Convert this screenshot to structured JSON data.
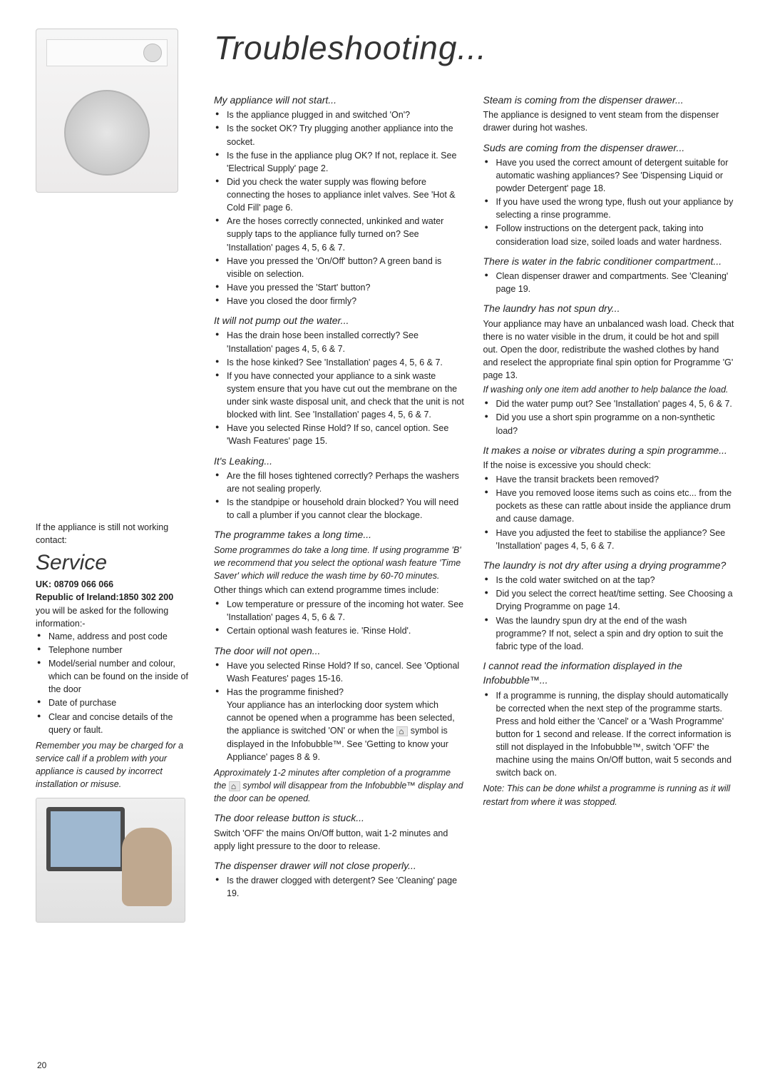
{
  "pageNumber": "20",
  "title": "Troubleshooting...",
  "left": {
    "serviceIntro": "If the appliance is still not working contact:",
    "serviceHead": "Service",
    "uk": "UK: 08709 066 066",
    "roi": "Republic of Ireland:1850 302 200",
    "infoLead": "you will be asked for the following information:-",
    "info": [
      "Name, address and post code",
      "Telephone number",
      "Model/serial number and colour, which can be found on the inside of the door",
      "Date of purchase",
      "Clear and concise details of the query or fault."
    ],
    "remember": "Remember you may be charged for a service call if a problem with your appliance is caused by incorrect installation or misuse."
  },
  "colA": {
    "s1": {
      "head": "My appliance will not start...",
      "items": [
        "Is the appliance plugged in and switched 'On'?",
        "Is the socket OK? Try plugging another appliance into the socket.",
        "Is the fuse in the appliance plug OK? If not, replace it. See 'Electrical Supply' page 2.",
        "Did you check the water supply was flowing before connecting the hoses to appliance inlet valves. See 'Hot & Cold Fill' page 6.",
        "Are the hoses correctly connected, unkinked and water supply taps to the appliance fully turned on? See 'Installation' pages 4, 5, 6 & 7.",
        "Have you pressed the 'On/Off' button? A green band is visible on selection.",
        "Have you pressed the 'Start' button?",
        "Have you closed the door firmly?"
      ]
    },
    "s2": {
      "head": "It will not pump out the water...",
      "items": [
        "Has the drain hose been installed correctly? See 'Installation' pages 4, 5, 6 & 7.",
        "Is the hose kinked? See 'Installation' pages 4, 5, 6 & 7.",
        "If you have connected your appliance to a sink waste system ensure that you have cut out the membrane on the under sink waste disposal unit, and check that the unit is not blocked with lint. See 'Installation' pages 4, 5, 6 & 7.",
        "Have you selected Rinse Hold? If so, cancel option. See 'Wash Features' page 15."
      ]
    },
    "s3": {
      "head": "It's Leaking...",
      "items": [
        "Are the fill hoses tightened correctly? Perhaps the washers are not sealing properly.",
        "Is the standpipe or household drain blocked? You will need to call a plumber if you cannot clear the blockage."
      ]
    },
    "s4": {
      "head": "The programme takes a long time...",
      "lead": "Some programmes do take a long time. If using programme 'B' we recommend that you select the optional wash feature 'Time Saver' which will reduce the wash time by 60-70 minutes.",
      "other": "Other things which can extend programme times include:",
      "items": [
        "Low temperature or pressure of the incoming hot water. See 'Installation' pages 4, 5, 6 & 7.",
        "Certain optional wash features ie. 'Rinse Hold'."
      ]
    },
    "s5": {
      "head": "The door will not open...",
      "itemsA": [
        "Have you selected Rinse Hold? If so, cancel. See 'Optional Wash Features' pages 15-16."
      ],
      "itemB_lead": "Has the programme finished?",
      "itemB_body1": "Your appliance has an interlocking door system which cannot be opened when a programme has been selected, the appliance is switched 'ON' or when the ",
      "itemB_body2": " symbol is displayed in the Infobubble™. See 'Getting to know your Appliance' pages 8 & 9.",
      "note1": "Approximately 1-2 minutes after completion of a programme the ",
      "note2": " symbol will disappear from the Infobubble™ display and the door can be opened."
    },
    "s6": {
      "head": "The door release button is stuck...",
      "body": "Switch 'OFF' the mains On/Off button, wait 1-2 minutes and apply light pressure to the door to release."
    },
    "s7": {
      "head": "The dispenser drawer will not close properly...",
      "items": [
        "Is the drawer clogged with detergent? See 'Cleaning' page 19."
      ]
    }
  },
  "colB": {
    "s1": {
      "head": "Steam is coming from the dispenser drawer...",
      "body": "The appliance is designed to vent steam from the dispenser drawer during hot washes."
    },
    "s2": {
      "head": "Suds are coming from the dispenser drawer...",
      "items": [
        "Have you used the correct amount of detergent suitable for automatic washing appliances? See 'Dispensing Liquid or powder Detergent' page 18.",
        "If you have used the wrong type, flush out your appliance by selecting a rinse programme.",
        "Follow instructions on the detergent pack, taking into consideration load size, soiled loads and water hardness."
      ]
    },
    "s3": {
      "head": "There is water in the fabric conditioner compartment...",
      "items": [
        "Clean dispenser drawer and compartments. See 'Cleaning' page 19."
      ]
    },
    "s4": {
      "head": "The laundry has not spun dry...",
      "body": "Your appliance may have an unbalanced wash load. Check that there is no water visible in the drum, it could be hot and spill out. Open the door, redistribute the washed clothes by hand and reselect the appropriate final spin option for Programme 'G' page 13.",
      "note": "If washing only one item add another to help balance the load.",
      "items": [
        "Did the water pump out? See 'Installation' pages 4, 5, 6 & 7.",
        "Did you use a short spin programme on a non-synthetic load?"
      ]
    },
    "s5": {
      "head": "It makes a noise or vibrates during a spin programme...",
      "lead": "If the noise is excessive you should check:",
      "items": [
        "Have the transit brackets been removed?",
        "Have you removed loose items such as coins etc... from the pockets as these can rattle about inside the appliance drum and cause damage.",
        "Have you adjusted the feet to stabilise the appliance? See 'Installation' pages 4, 5, 6 & 7."
      ]
    },
    "s6": {
      "head": "The laundry is not dry after using a drying programme?",
      "items": [
        "Is the cold water switched on at the tap?",
        "Did you select the correct heat/time setting. See Choosing a Drying Programme on page 14.",
        "Was the laundry spun dry at the end of the wash programme? If not, select a spin and dry option to suit the fabric type of the load."
      ]
    },
    "s7": {
      "head": "I cannot read the information displayed in the Infobubble™...",
      "items": [
        "If a programme is running, the display should automatically be corrected when the next step of the programme starts. Press and hold either the 'Cancel' or a 'Wash Programme' button for 1 second and release. If the correct information is still not displayed in the Infobubble™, switch 'OFF' the machine using the mains On/Off button, wait 5 seconds and switch back on."
      ],
      "note": "Note: This can be done whilst a programme is running as it will restart from where it was stopped."
    }
  }
}
